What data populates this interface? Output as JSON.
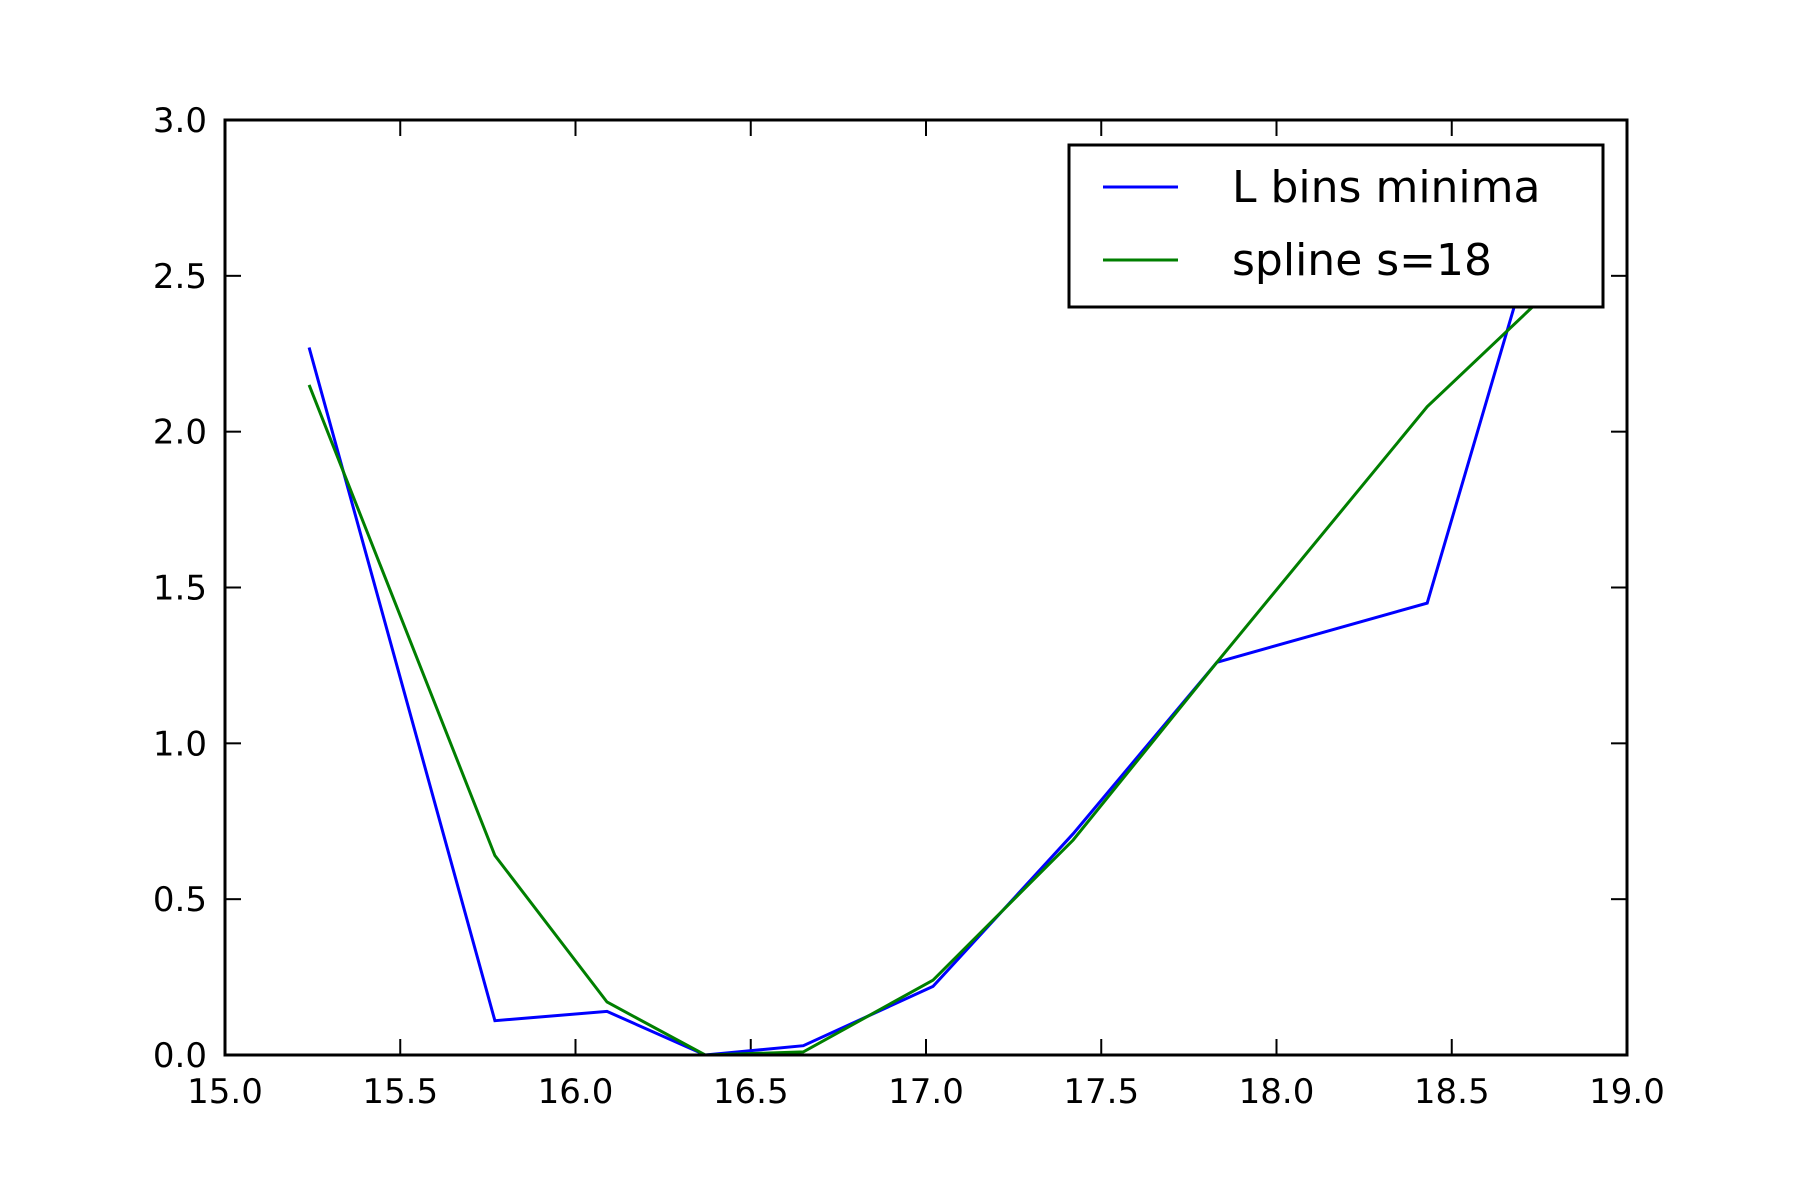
{
  "chart_data": {
    "type": "line",
    "title": "",
    "xlabel": "",
    "ylabel": "",
    "xlim": [
      15.0,
      19.0
    ],
    "ylim": [
      0.0,
      3.0
    ],
    "xticks": [
      "15.0",
      "15.5",
      "16.0",
      "16.5",
      "17.0",
      "17.5",
      "18.0",
      "18.5",
      "19.0"
    ],
    "yticks": [
      "0.0",
      "0.5",
      "1.0",
      "1.5",
      "2.0",
      "2.5",
      "3.0"
    ],
    "grid": false,
    "legend_position": "top-right",
    "series": [
      {
        "name": "L bins minima",
        "color": "#0000ff",
        "x": [
          15.24,
          15.77,
          16.09,
          16.37,
          16.65,
          17.02,
          17.42,
          17.83,
          18.43,
          18.73
        ],
        "y": [
          2.27,
          0.11,
          0.14,
          0.0,
          0.03,
          0.22,
          0.71,
          1.26,
          1.45,
          2.6
        ]
      },
      {
        "name": "spline s=18",
        "color": "#007f00",
        "x": [
          15.24,
          15.77,
          16.09,
          16.37,
          16.65,
          17.02,
          17.42,
          17.83,
          18.43,
          18.73
        ],
        "y": [
          2.15,
          0.64,
          0.17,
          0.0,
          0.01,
          0.24,
          0.69,
          1.26,
          2.08,
          2.4
        ]
      }
    ]
  }
}
